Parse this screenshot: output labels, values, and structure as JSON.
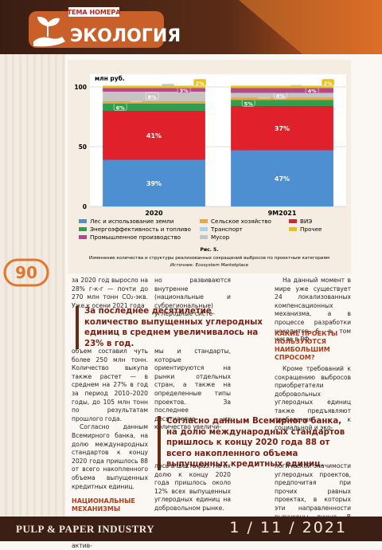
{
  "header": {
    "tag": "ТЕМА НОМЕРА",
    "title": "ЭКОЛОГИЯ"
  },
  "page_number": "90",
  "chart_data": {
    "type": "bar",
    "stacked": true,
    "y_label": "млн руб.",
    "categories": [
      "2020",
      "9M2021"
    ],
    "ylim": [
      0,
      100
    ],
    "yticks": [
      0,
      50,
      100
    ],
    "grid": true,
    "series": [
      {
        "name": "Лес и использование земли",
        "color": "#4d8fd1",
        "values": [
          39,
          47
        ],
        "value_labels": [
          "39%",
          "47%"
        ]
      },
      {
        "name": "ВИЭ",
        "color": "#e0202a",
        "values": [
          41,
          37
        ],
        "value_labels": [
          "41%",
          "37%"
        ]
      },
      {
        "name": "Энергоэффективность и топливо",
        "color": "#2f9e4f",
        "values": [
          6,
          5
        ],
        "value_labels": [
          "6%",
          "5%"
        ]
      },
      {
        "name": "Сельское хозяйство",
        "color": "#f2a33a",
        "values": [
          2,
          2
        ],
        "value_labels": [
          "2%",
          "2%"
        ]
      },
      {
        "name": "Мусор",
        "color": "#c4c4c4",
        "values": [
          8,
          4
        ],
        "value_labels": [
          "8%",
          "4%"
        ]
      },
      {
        "name": "Транспорт",
        "color": "#a8d0ee",
        "values": [
          0,
          0
        ],
        "value_labels": [
          "0%",
          "0%"
        ]
      },
      {
        "name": "Промышленное производство",
        "color": "#b5478e",
        "values": [
          3,
          4
        ],
        "value_labels": [
          "3%",
          "4%"
        ]
      },
      {
        "name": "Прочее",
        "color": "#e6c21c",
        "values": [
          2,
          2
        ],
        "value_labels": [
          "2%",
          "2%"
        ]
      }
    ],
    "figure_label": "Рис. 5.",
    "caption": "Изменение количества и структуры реализованных сокращений выбросов по проектным категориям",
    "source": "Источник: Ecosystem Marketplace"
  },
  "article": {
    "col1_top": "за 2020 год выросло на 28% г-к-г — почти до 270 млн тонн CO₂-экв. Уже к осени 2021 года",
    "col2_top": "но развиваются внутренне (национальные и субрегиональные) углеродные систе-",
    "col3_top": "На данный момент в мире уже существует 24 локализованных компенсационных механизма, а в процессе разработки находится 6, в том числе в РФ.",
    "quote1": "За последнее десятилетие количество выпущенных углеродных единиц в среднем увеличивалось на 23% в год.",
    "col1_mid": [
      "объем составил чуть более 250 млн тонн. Количество выкупа также растет — в среднем на 27% в год за период 2010–2020 годы, до 105 млн тонн по результатам прошлого года.",
      "Согласно данным Всемирного банка, на долю международных стандартов к концу 2020 года пришлось 88 от всего накопленного объема выпущенных кредитных единиц."
    ],
    "heading1": "НАЦИОНАЛЬНЫЕ МЕХАНИЗМЫ",
    "col1_end": "Наряду с международными в последнее время актив-",
    "col2_mid": "мы и стандарты, которые ориентируются на рынки отдельных стран, а также на определенные типы проектов. За последнее десятилетие их количество увеличи-",
    "heading2": "КАКИЕ ПРОЕКТЫ ПОЛЬЗУЮТСЯ НАИБОЛЬШИМ СПРОСОМ?",
    "col3_mid": "Кроме требований к сокращению выбросов приобретатели добровольных углеродных единиц также предъявляют требования к социальной и эко-",
    "quote2": "Согласно данным Всемирного банка, на долю международных стандартов пришлось к концу 2020 года 88 от всего накопленного объема выпущенных кредитных единиц.",
    "col2_end": "лось в шесть раз. На их долю к концу 2020 года пришлось около 12% всех выпущенных углеродных единиц на добровольном рынке.",
    "col3_end": "логической значимости углеродных проектов, предпочитая при прочих равных проектах, в которых эти направленности выражены лучше. В частности,"
  },
  "footer": {
    "magazine": "PULP & PAPER INDUSTRY",
    "issue": "1 / 11 / 2021"
  }
}
